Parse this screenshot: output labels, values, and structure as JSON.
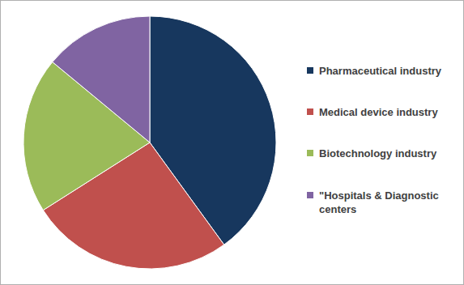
{
  "chart_data": {
    "type": "pie",
    "categories": [
      "Pharmaceutical industry",
      "Medical device industry",
      "Biotechnology industry",
      "\"Hospitals & Diagnostic centers"
    ],
    "values": [
      40,
      26,
      20,
      14
    ],
    "colors": [
      "#17375e",
      "#c0504d",
      "#9bbb59",
      "#8064a2"
    ],
    "legend": "right"
  }
}
